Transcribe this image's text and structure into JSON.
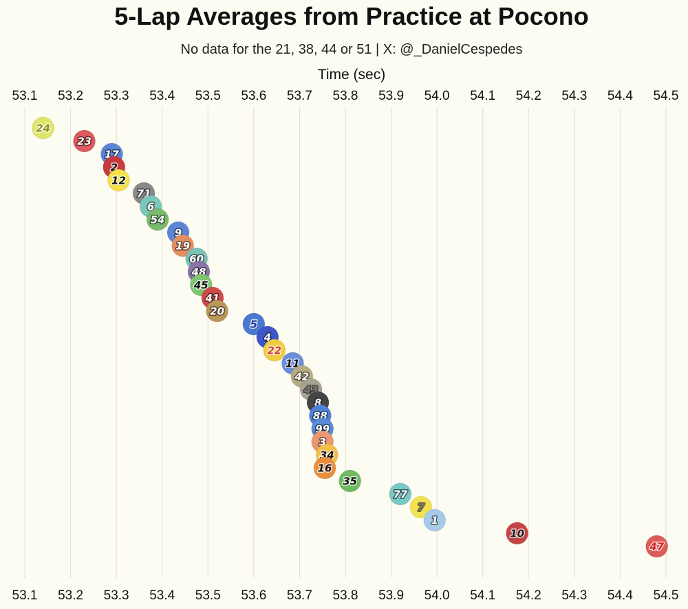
{
  "chart_data": {
    "type": "scatter",
    "title": "5-Lap Averages from Practice at Pocono",
    "subtitle": "No data for the 21, 38, 44 or 51 | X: @_DanielCespedes",
    "xlabel": "Time (sec)",
    "xlim": [
      53.1,
      54.5
    ],
    "xticks": [
      "53.1",
      "53.2",
      "53.3",
      "53.4",
      "53.5",
      "53.6",
      "53.7",
      "53.8",
      "53.9",
      "54.0",
      "54.1",
      "54.2",
      "54.3",
      "54.4",
      "54.5"
    ],
    "grid": true,
    "points": [
      {
        "car": "24",
        "time": 53.14,
        "color": "#dde66a",
        "text": "#8a8f1c"
      },
      {
        "car": "23",
        "time": 53.23,
        "color": "#dd5a5e",
        "text": "#ffffff"
      },
      {
        "car": "17",
        "time": 53.29,
        "color": "#5d85d6",
        "text": "#ffffff"
      },
      {
        "car": "2",
        "time": 53.295,
        "color": "#c63b3b",
        "text": "#111111"
      },
      {
        "car": "12",
        "time": 53.305,
        "color": "#f3e04a",
        "text": "#111111"
      },
      {
        "car": "71",
        "time": 53.36,
        "color": "#8a8a8a",
        "text": "#ffffff"
      },
      {
        "car": "6",
        "time": 53.375,
        "color": "#7cc7bb",
        "text": "#ffffff"
      },
      {
        "car": "54",
        "time": 53.39,
        "color": "#79ba6f",
        "text": "#ffffff"
      },
      {
        "car": "9",
        "time": 53.435,
        "color": "#5c86d4",
        "text": "#ffffff"
      },
      {
        "car": "19",
        "time": 53.445,
        "color": "#e48f62",
        "text": "#ffffff"
      },
      {
        "car": "60",
        "time": 53.475,
        "color": "#7cc1b6",
        "text": "#ffffff"
      },
      {
        "car": "48",
        "time": 53.48,
        "color": "#8a74a8",
        "text": "#ffffff"
      },
      {
        "car": "45",
        "time": 53.485,
        "color": "#7fc46e",
        "text": "#111111"
      },
      {
        "car": "41",
        "time": 53.51,
        "color": "#d04a4a",
        "text": "#ffffff"
      },
      {
        "car": "20",
        "time": 53.52,
        "color": "#b9975a",
        "text": "#ffffff"
      },
      {
        "car": "5",
        "time": 53.6,
        "color": "#4a77d0",
        "text": "#1f3f8f"
      },
      {
        "car": "4",
        "time": 53.63,
        "color": "#3e56c6",
        "text": "#ffffff"
      },
      {
        "car": "22",
        "time": 53.645,
        "color": "#f0cc3f",
        "text": "#d83b26"
      },
      {
        "car": "11",
        "time": 53.685,
        "color": "#6a8edb",
        "text": "#111111"
      },
      {
        "car": "42",
        "time": 53.705,
        "color": "#b6ab83",
        "text": "#ffffff"
      },
      {
        "car": "43",
        "time": 53.725,
        "color": "#a7a292",
        "text": "#777777"
      },
      {
        "car": "8",
        "time": 53.74,
        "color": "#444444",
        "text": "#ffffff"
      },
      {
        "car": "88",
        "time": 53.745,
        "color": "#4d83d9",
        "text": "#ffffff"
      },
      {
        "car": "99",
        "time": 53.75,
        "color": "#5b8bd8",
        "text": "#ffffff"
      },
      {
        "car": "3",
        "time": 53.75,
        "color": "#e99872",
        "text": "#ffffff"
      },
      {
        "car": "34",
        "time": 53.76,
        "color": "#f0c04a",
        "text": "#111111"
      },
      {
        "car": "16",
        "time": 53.755,
        "color": "#eb8e3b",
        "text": "#111111"
      },
      {
        "car": "35",
        "time": 53.81,
        "color": "#6fba62",
        "text": "#111111"
      },
      {
        "car": "77",
        "time": 53.92,
        "color": "#78c8c5",
        "text": "#ffffff"
      },
      {
        "car": "7",
        "time": 53.965,
        "color": "#f1e253",
        "text": "#777777"
      },
      {
        "car": "1",
        "time": 53.995,
        "color": "#a6cbe8",
        "text": "#ffffff"
      },
      {
        "car": "10",
        "time": 54.175,
        "color": "#c54547",
        "text": "#222222"
      },
      {
        "car": "47",
        "time": 54.48,
        "color": "#dd5b5a",
        "text": "#d42323"
      }
    ]
  }
}
